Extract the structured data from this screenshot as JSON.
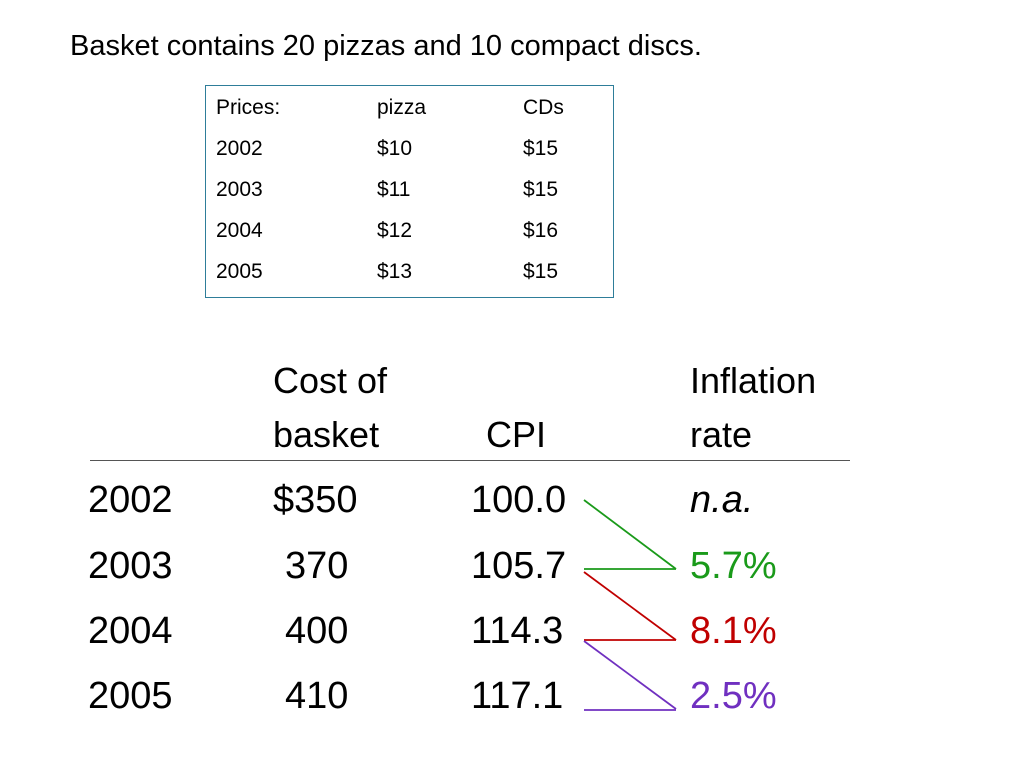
{
  "headline": "Basket contains 20 pizzas and 10 compact discs.",
  "price_table": {
    "headers": [
      "Prices:",
      "pizza",
      "CDs"
    ],
    "rows": [
      [
        "2002",
        "$10",
        "$15"
      ],
      [
        "2003",
        "$11",
        "$15"
      ],
      [
        "2004",
        "$12",
        "$16"
      ],
      [
        "2005",
        "$13",
        "$15"
      ]
    ]
  },
  "main_table": {
    "headers": {
      "cost_line1": "Cost of",
      "cost_line2": "basket",
      "cpi": "CPI",
      "inflation_line1": "Inflation",
      "inflation_line2": "rate"
    },
    "rows": [
      {
        "year": "2002",
        "cost": "$350",
        "cpi": "100.0",
        "inflation": "n.a."
      },
      {
        "year": "2003",
        "cost": "370",
        "cpi": "105.7",
        "inflation": "5.7%"
      },
      {
        "year": "2004",
        "cost": "400",
        "cpi": "114.3",
        "inflation": "8.1%"
      },
      {
        "year": "2005",
        "cost": "410",
        "cpi": "117.1",
        "inflation": "2.5%"
      }
    ]
  },
  "colors": {
    "na": "#000000",
    "row_2003": "#1a9a1a",
    "row_2004": "#c00000",
    "row_2005": "#7030c0",
    "box_border": "#2e7d99"
  }
}
